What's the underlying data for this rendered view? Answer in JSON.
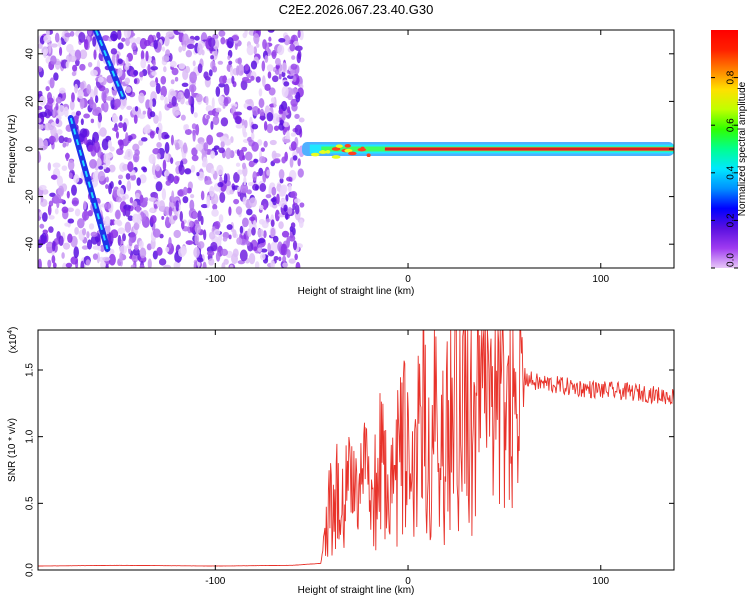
{
  "chart_data": [
    {
      "type": "heatmap",
      "title": "C2E2.2026.067.23.40.G30",
      "xlabel": "Height of straight line (km)",
      "ylabel": "Frequency (Hz)",
      "xlim": [
        -192,
        138
      ],
      "ylim": [
        -50,
        50
      ],
      "xticks": [
        -100,
        0,
        100
      ],
      "yticks": [
        40,
        20,
        0,
        -20,
        -40
      ],
      "colorbar": {
        "label": "Normalized spectral amplitude",
        "range": [
          0,
          1
        ],
        "ticks": [
          "0.0",
          "0.2",
          "0.4",
          "0.6",
          "0.8"
        ],
        "colors": [
          "#e8c8f8",
          "#9f3bf0",
          "#5a10e0",
          "#0000ff",
          "#0090ff",
          "#00e8ff",
          "#00ff90",
          "#30ff00",
          "#c0ff00",
          "#ffe000",
          "#ff8000",
          "#ff2000",
          "#ff0000"
        ]
      },
      "features": {
        "noise_region_x": [
          -192,
          -55
        ],
        "signal_line": {
          "x_start": -55,
          "x_end": 138,
          "freq": 0,
          "core_from_x": -12
        },
        "diagonal_tracks": [
          {
            "x": [
              -175,
              -156
            ],
            "freq": [
              13,
              -42
            ]
          },
          {
            "x": [
              -162,
              -148
            ],
            "freq": [
              50,
              22
            ]
          }
        ]
      }
    },
    {
      "type": "line",
      "xlabel": "Height of straight line (km)",
      "ylabel": "SNR (10 * v/v)",
      "y_multiplier": "(x10",
      "y_multiplier_exp": "4",
      "xlim": [
        -192,
        138
      ],
      "ylim": [
        0,
        1.8
      ],
      "xticks": [
        -100,
        0,
        100
      ],
      "yticks": [
        "0.0",
        "0.5",
        "1.0",
        "1.5"
      ],
      "series": [
        {
          "name": "SNR",
          "color": "#e8322a",
          "x": [
            -192,
            -150,
            -100,
            -60,
            -45,
            -42,
            -38,
            -34,
            -30,
            -26,
            -22,
            -18,
            -14,
            -10,
            -6,
            -2,
            2,
            6,
            10,
            12,
            14,
            18,
            22,
            26,
            30,
            34,
            38,
            44,
            50,
            56,
            60,
            64,
            68,
            72,
            76,
            80,
            86,
            92,
            100,
            110,
            120,
            130,
            138
          ],
          "values": [
            0.03,
            0.035,
            0.03,
            0.035,
            0.05,
            0.45,
            0.72,
            0.55,
            0.8,
            0.62,
            0.9,
            0.75,
            0.95,
            0.85,
            1.0,
            1.1,
            0.8,
            1.35,
            1.3,
            0.6,
            1.5,
            1.2,
            1.35,
            1.4,
            1.5,
            1.45,
            1.6,
            1.55,
            1.58,
            1.52,
            1.45,
            1.42,
            1.4,
            1.4,
            1.39,
            1.38,
            1.37,
            1.36,
            1.35,
            1.34,
            1.33,
            1.31,
            1.3
          ]
        }
      ]
    }
  ]
}
